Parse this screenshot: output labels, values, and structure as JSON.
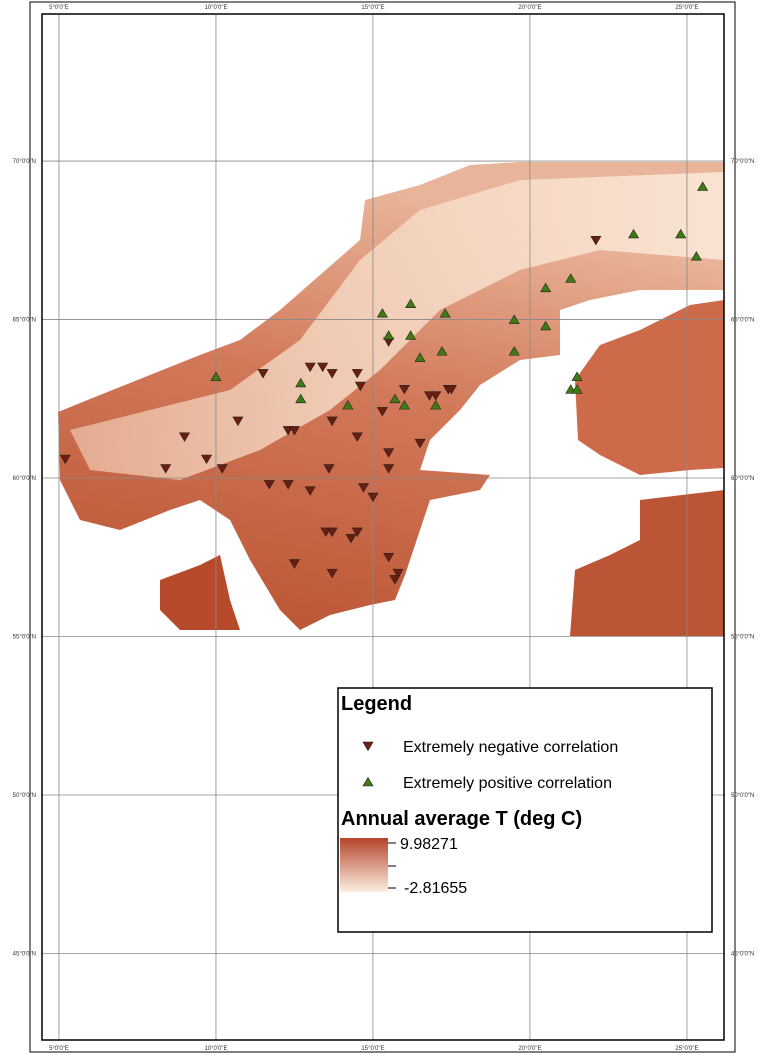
{
  "map": {
    "xlim": [
      4.46,
      26.18
    ],
    "ylim": [
      42.27,
      74.64
    ],
    "xticks": [
      {
        "value": 5,
        "label": "5°0'0\"E"
      },
      {
        "value": 10,
        "label": "10°0'0\"E"
      },
      {
        "value": 15,
        "label": "15°0'0\"E"
      },
      {
        "value": 20,
        "label": "20°0'0\"E"
      },
      {
        "value": 25,
        "label": "25°0'0\"E"
      }
    ],
    "yticks": [
      {
        "value": 70,
        "label": "70°0'0\"N"
      },
      {
        "value": 65,
        "label": "65°0'0\"N"
      },
      {
        "value": 60,
        "label": "60°0'0\"N"
      },
      {
        "value": 55,
        "label": "55°0'0\"N"
      },
      {
        "value": 50,
        "label": "50°0'0\"N"
      },
      {
        "value": 45,
        "label": "45°0'0\"N"
      }
    ],
    "grid": true,
    "legend_title": "Legend",
    "series": [
      {
        "name": "Extremely negative correlation",
        "color": "#6b1d0f",
        "marker": "down",
        "points": [
          {
            "lon": 5.2,
            "lat": 60.6
          },
          {
            "lon": 9.0,
            "lat": 61.3
          },
          {
            "lon": 8.4,
            "lat": 60.3
          },
          {
            "lon": 9.7,
            "lat": 60.6
          },
          {
            "lon": 10.2,
            "lat": 60.3
          },
          {
            "lon": 10.7,
            "lat": 61.8
          },
          {
            "lon": 11.5,
            "lat": 63.3
          },
          {
            "lon": 12.3,
            "lat": 61.5
          },
          {
            "lon": 12.5,
            "lat": 61.5
          },
          {
            "lon": 11.7,
            "lat": 59.8
          },
          {
            "lon": 12.3,
            "lat": 59.8
          },
          {
            "lon": 13.0,
            "lat": 59.6
          },
          {
            "lon": 13.0,
            "lat": 63.5
          },
          {
            "lon": 13.4,
            "lat": 63.5
          },
          {
            "lon": 13.7,
            "lat": 61.8
          },
          {
            "lon": 13.7,
            "lat": 63.3
          },
          {
            "lon": 13.6,
            "lat": 60.3
          },
          {
            "lon": 13.5,
            "lat": 58.3
          },
          {
            "lon": 13.7,
            "lat": 58.3
          },
          {
            "lon": 14.3,
            "lat": 58.1
          },
          {
            "lon": 14.5,
            "lat": 58.3
          },
          {
            "lon": 14.5,
            "lat": 63.3
          },
          {
            "lon": 14.6,
            "lat": 62.9
          },
          {
            "lon": 14.5,
            "lat": 61.3
          },
          {
            "lon": 14.7,
            "lat": 59.7
          },
          {
            "lon": 15.0,
            "lat": 59.4
          },
          {
            "lon": 15.5,
            "lat": 60.8
          },
          {
            "lon": 15.3,
            "lat": 62.1
          },
          {
            "lon": 15.5,
            "lat": 64.3
          },
          {
            "lon": 15.5,
            "lat": 57.5
          },
          {
            "lon": 15.8,
            "lat": 57.0
          },
          {
            "lon": 15.7,
            "lat": 56.8
          },
          {
            "lon": 16.0,
            "lat": 62.8
          },
          {
            "lon": 16.8,
            "lat": 62.6
          },
          {
            "lon": 17.0,
            "lat": 62.6
          },
          {
            "lon": 17.4,
            "lat": 62.8
          },
          {
            "lon": 17.5,
            "lat": 62.8
          },
          {
            "lon": 16.5,
            "lat": 61.1
          },
          {
            "lon": 22.1,
            "lat": 67.5
          },
          {
            "lon": 13.7,
            "lat": 57.0
          },
          {
            "lon": 12.5,
            "lat": 57.3
          },
          {
            "lon": 15.5,
            "lat": 60.3
          }
        ]
      },
      {
        "name": "Extremely positive correlation",
        "color": "#3f7a12",
        "marker": "up",
        "points": [
          {
            "lon": 25.5,
            "lat": 69.2
          },
          {
            "lon": 23.3,
            "lat": 67.7
          },
          {
            "lon": 24.8,
            "lat": 67.7
          },
          {
            "lon": 25.3,
            "lat": 67.0
          },
          {
            "lon": 21.3,
            "lat": 66.3
          },
          {
            "lon": 20.5,
            "lat": 66.0
          },
          {
            "lon": 16.2,
            "lat": 65.5
          },
          {
            "lon": 15.3,
            "lat": 65.2
          },
          {
            "lon": 17.3,
            "lat": 65.2
          },
          {
            "lon": 19.5,
            "lat": 65.0
          },
          {
            "lon": 20.5,
            "lat": 64.8
          },
          {
            "lon": 15.5,
            "lat": 64.5
          },
          {
            "lon": 16.2,
            "lat": 64.5
          },
          {
            "lon": 17.2,
            "lat": 64.0
          },
          {
            "lon": 19.5,
            "lat": 64.0
          },
          {
            "lon": 16.5,
            "lat": 63.8
          },
          {
            "lon": 10.0,
            "lat": 63.2
          },
          {
            "lon": 12.7,
            "lat": 63.0
          },
          {
            "lon": 12.7,
            "lat": 62.5
          },
          {
            "lon": 14.2,
            "lat": 62.3
          },
          {
            "lon": 21.5,
            "lat": 63.2
          },
          {
            "lon": 21.3,
            "lat": 62.8
          },
          {
            "lon": 21.5,
            "lat": 62.8
          },
          {
            "lon": 15.7,
            "lat": 62.5
          },
          {
            "lon": 16.0,
            "lat": 62.3
          },
          {
            "lon": 17.0,
            "lat": 62.3
          }
        ]
      }
    ],
    "colorbar": {
      "title": "Annual average T (deg C)",
      "max": 9.98271,
      "min": -2.81655,
      "colors": [
        "#b5452b",
        "#fcefe2"
      ]
    }
  }
}
